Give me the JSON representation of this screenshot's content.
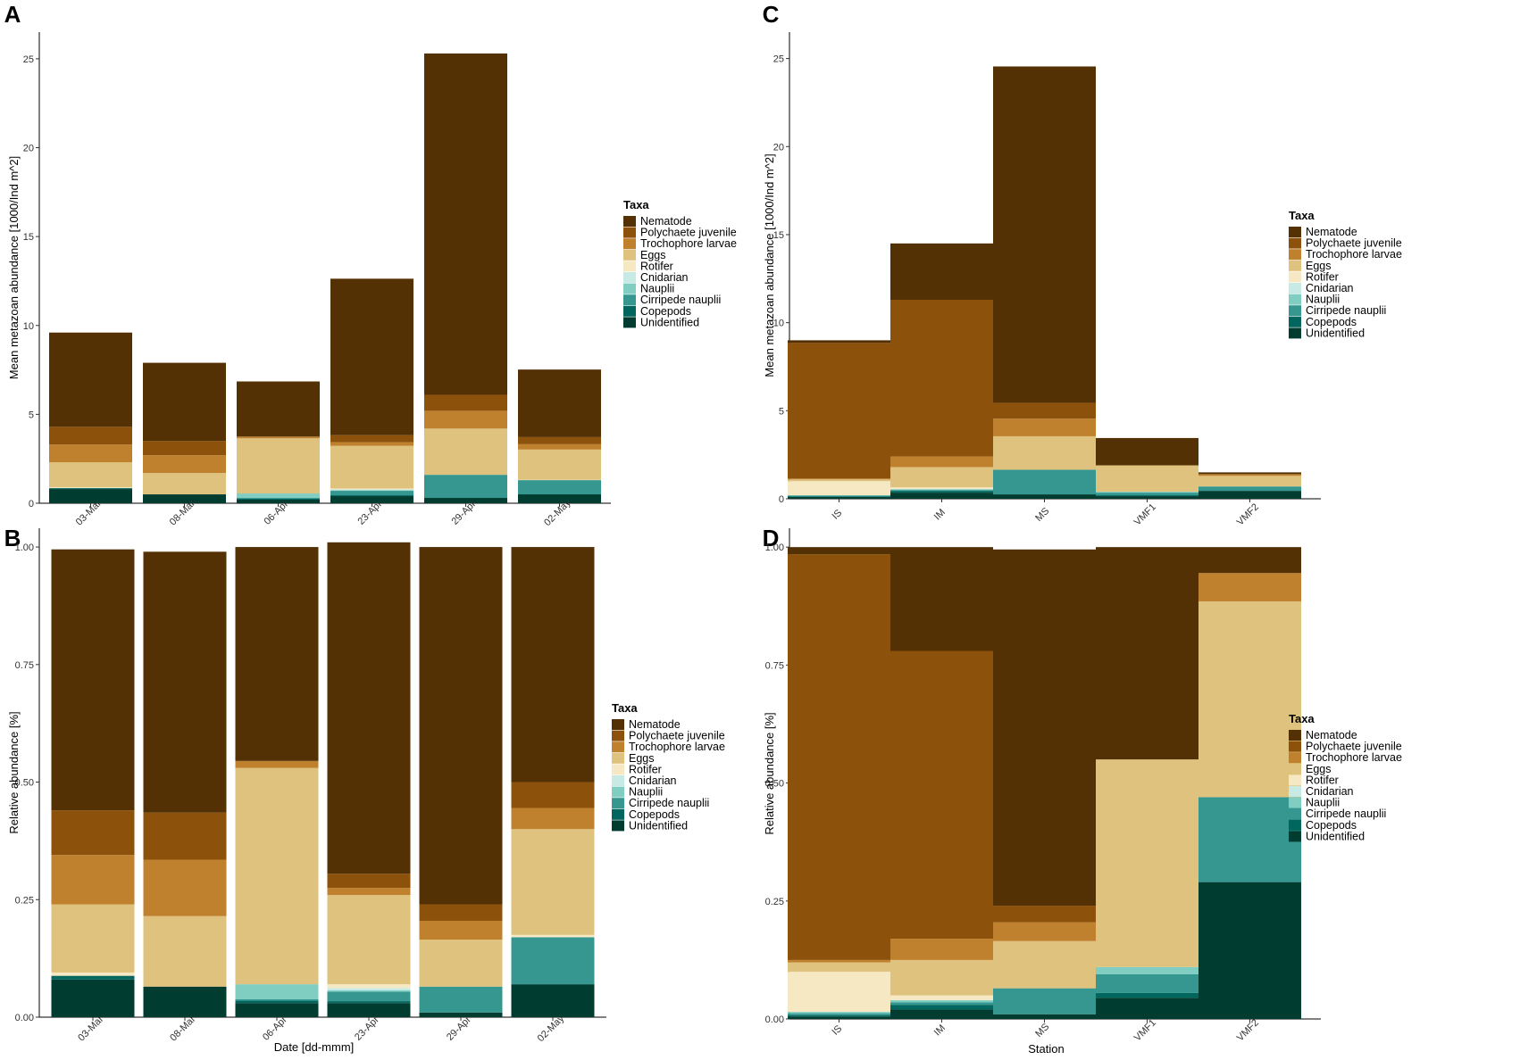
{
  "figure": {
    "taxa": [
      "Nematode",
      "Polychaete juvenile",
      "Trochophore larvae",
      "Eggs",
      "Rotifer",
      "Cnidarian",
      "Nauplii",
      "Cirripede nauplii",
      "Copepods",
      "Unidentified"
    ],
    "colors": {
      "Nematode": "#543005",
      "Polychaete juvenile": "#8C510A",
      "Trochophore larvae": "#BF812D",
      "Eggs": "#DFC27D",
      "Rotifer": "#F6E8C3",
      "Cnidarian": "#C7EAE5",
      "Nauplii": "#80CDC1",
      "Cirripede nauplii": "#35978F",
      "Copepods": "#01665E",
      "Unidentified": "#003C30"
    }
  },
  "chart_data": [
    {
      "panel": "A",
      "type": "bar",
      "stacked": true,
      "title": "",
      "xlabel": "",
      "ylabel": "Mean metazoan abundance [1000/Ind m^2]",
      "ylim": [
        0,
        26.5
      ],
      "yticks": [
        0,
        5,
        10,
        15,
        20,
        25
      ],
      "ytick_labels": [
        "0",
        "5",
        "10",
        "15",
        "20",
        "25"
      ],
      "categories": [
        "03-Mar",
        "08-Mar",
        "06-Apr",
        "23-Apr",
        "29-Apr",
        "02-May"
      ],
      "legend_title": "Taxa",
      "legend_position": "right",
      "series": [
        {
          "name": "Nematode",
          "values": [
            5.3,
            4.4,
            3.1,
            8.8,
            19.2,
            3.8
          ]
        },
        {
          "name": "Polychaete juvenile",
          "values": [
            1.0,
            0.8,
            0.0,
            0.4,
            0.9,
            0.4
          ]
        },
        {
          "name": "Trochophore larvae",
          "values": [
            1.0,
            1.0,
            0.1,
            0.2,
            1.0,
            0.3
          ]
        },
        {
          "name": "Eggs",
          "values": [
            1.4,
            1.2,
            3.1,
            2.4,
            2.6,
            1.7
          ]
        },
        {
          "name": "Rotifer",
          "values": [
            0.05,
            0.0,
            0.0,
            0.05,
            0.0,
            0.02
          ]
        },
        {
          "name": "Cnidarian",
          "values": [
            0.0,
            0.0,
            0.0,
            0.05,
            0.0,
            0.0
          ]
        },
        {
          "name": "Nauplii",
          "values": [
            0.0,
            0.0,
            0.25,
            0.03,
            0.0,
            0.0
          ]
        },
        {
          "name": "Cirripede nauplii",
          "values": [
            0.0,
            0.0,
            0.05,
            0.25,
            1.3,
            0.8
          ]
        },
        {
          "name": "Copepods",
          "values": [
            0.05,
            0.0,
            0.05,
            0.05,
            0.0,
            0.0
          ]
        },
        {
          "name": "Unidentified",
          "values": [
            0.8,
            0.5,
            0.2,
            0.4,
            0.3,
            0.5
          ]
        }
      ]
    },
    {
      "panel": "B",
      "type": "bar",
      "stacked": true,
      "title": "",
      "xlabel": "Date [dd-mmm]",
      "ylabel": "Relative abundance [%]",
      "ylim": [
        0,
        1.04
      ],
      "yticks": [
        0,
        0.25,
        0.5,
        0.75,
        1.0
      ],
      "ytick_labels": [
        "0.00",
        "0.25",
        "0.50",
        "0.75",
        "1.00"
      ],
      "categories": [
        "03-Mar",
        "08-Mar",
        "06-Apr",
        "23-Apr",
        "29-Apr",
        "02-May"
      ],
      "legend_title": "Taxa",
      "legend_position": "right",
      "series": [
        {
          "name": "Nematode",
          "values": [
            0.555,
            0.555,
            0.455,
            0.705,
            0.76,
            0.5
          ]
        },
        {
          "name": "Polychaete juvenile",
          "values": [
            0.095,
            0.1,
            0.0,
            0.03,
            0.035,
            0.055
          ]
        },
        {
          "name": "Trochophore larvae",
          "values": [
            0.105,
            0.12,
            0.015,
            0.015,
            0.04,
            0.045
          ]
        },
        {
          "name": "Eggs",
          "values": [
            0.145,
            0.15,
            0.46,
            0.19,
            0.1,
            0.225
          ]
        },
        {
          "name": "Rotifer",
          "values": [
            0.007,
            0.0,
            0.0,
            0.008,
            0.0,
            0.005
          ]
        },
        {
          "name": "Cnidarian",
          "values": [
            0.0,
            0.0,
            0.0,
            0.005,
            0.0,
            0.0
          ]
        },
        {
          "name": "Nauplii",
          "values": [
            0.0,
            0.0,
            0.032,
            0.003,
            0.0,
            0.0
          ]
        },
        {
          "name": "Cirripede nauplii",
          "values": [
            0.0,
            0.0,
            0.003,
            0.02,
            0.055,
            0.1
          ]
        },
        {
          "name": "Copepods",
          "values": [
            0.008,
            0.0,
            0.005,
            0.004,
            0.0,
            0.0
          ]
        },
        {
          "name": "Unidentified",
          "values": [
            0.08,
            0.065,
            0.03,
            0.03,
            0.01,
            0.07
          ]
        }
      ]
    },
    {
      "panel": "C",
      "type": "bar",
      "stacked": true,
      "title": "",
      "xlabel": "",
      "ylabel": "Mean metazoan abundance [1000/Ind m^2]",
      "ylim": [
        0,
        26.5
      ],
      "yticks": [
        0,
        5,
        10,
        15,
        20,
        25
      ],
      "ytick_labels": [
        "0",
        "5",
        "10",
        "15",
        "20",
        "25"
      ],
      "categories": [
        "IS",
        "IM",
        "MS",
        "VMF1",
        "VMF2"
      ],
      "legend_title": "Taxa",
      "legend_position": "right",
      "series": [
        {
          "name": "Nematode",
          "values": [
            0.15,
            3.2,
            19.1,
            1.55,
            0.1
          ]
        },
        {
          "name": "Polychaete juvenile",
          "values": [
            7.7,
            8.9,
            0.9,
            0.0,
            0.0
          ]
        },
        {
          "name": "Trochophore larvae",
          "values": [
            0.05,
            0.6,
            1.0,
            0.0,
            0.1
          ]
        },
        {
          "name": "Eggs",
          "values": [
            0.1,
            1.15,
            1.9,
            1.5,
            0.6
          ]
        },
        {
          "name": "Rotifer",
          "values": [
            0.8,
            0.1,
            0.0,
            0.0,
            0.0
          ]
        },
        {
          "name": "Cnidarian",
          "values": [
            0.0,
            0.0,
            0.0,
            0.0,
            0.0
          ]
        },
        {
          "name": "Nauplii",
          "values": [
            0.02,
            0.05,
            0.0,
            0.05,
            0.0
          ]
        },
        {
          "name": "Cirripede nauplii",
          "values": [
            0.05,
            0.05,
            1.4,
            0.15,
            0.25
          ]
        },
        {
          "name": "Copepods",
          "values": [
            0.03,
            0.1,
            0.0,
            0.05,
            0.0
          ]
        },
        {
          "name": "Unidentified",
          "values": [
            0.1,
            0.35,
            0.25,
            0.15,
            0.45
          ]
        }
      ]
    },
    {
      "panel": "D",
      "type": "bar",
      "stacked": true,
      "title": "",
      "xlabel": "Station",
      "ylabel": "Relative abundance [%]",
      "ylim": [
        0,
        1.04
      ],
      "yticks": [
        0,
        0.25,
        0.5,
        0.75,
        1.0
      ],
      "ytick_labels": [
        "0.00",
        "0.25",
        "0.50",
        "0.75",
        "1.00"
      ],
      "categories": [
        "IS",
        "IM",
        "MS",
        "VMF1",
        "VMF2"
      ],
      "legend_title": "Taxa",
      "legend_position": "right",
      "series": [
        {
          "name": "Nematode",
          "values": [
            0.015,
            0.22,
            0.755,
            0.45,
            0.055
          ]
        },
        {
          "name": "Polychaete juvenile",
          "values": [
            0.86,
            0.61,
            0.035,
            0.0,
            0.0
          ]
        },
        {
          "name": "Trochophore larvae",
          "values": [
            0.005,
            0.045,
            0.04,
            0.0,
            0.06
          ]
        },
        {
          "name": "Eggs",
          "values": [
            0.02,
            0.075,
            0.1,
            0.44,
            0.415
          ]
        },
        {
          "name": "Rotifer",
          "values": [
            0.085,
            0.01,
            0.0,
            0.0,
            0.0
          ]
        },
        {
          "name": "Cnidarian",
          "values": [
            0.0,
            0.0,
            0.0,
            0.0,
            0.0
          ]
        },
        {
          "name": "Nauplii",
          "values": [
            0.003,
            0.005,
            0.0,
            0.015,
            0.0
          ]
        },
        {
          "name": "Cirripede nauplii",
          "values": [
            0.004,
            0.005,
            0.055,
            0.04,
            0.18
          ]
        },
        {
          "name": "Copepods",
          "values": [
            0.003,
            0.01,
            0.0,
            0.01,
            0.0
          ]
        },
        {
          "name": "Unidentified",
          "values": [
            0.005,
            0.02,
            0.01,
            0.045,
            0.29
          ]
        }
      ]
    }
  ]
}
